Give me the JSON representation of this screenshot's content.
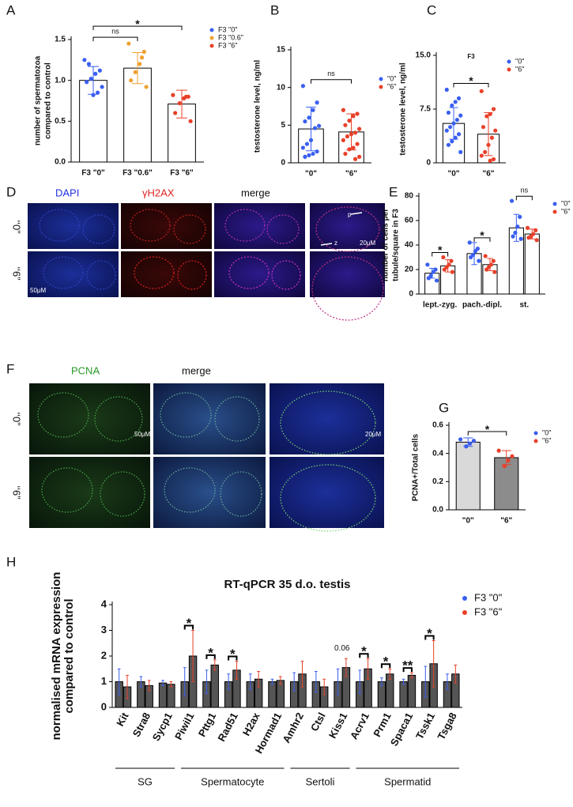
{
  "chart_data": [
    {
      "type": "bar",
      "panel": "A",
      "y_label": [
        "number of spermatozoa",
        "compared to control"
      ],
      "categories": [
        "F3 \"0\"",
        "F3 \"0.6\"",
        "F3 \"6\""
      ],
      "values": [
        1.0,
        1.15,
        0.71
      ],
      "errors": [
        0.17,
        0.19,
        0.17
      ],
      "points": [
        [
          1.25,
          1.12,
          1.08,
          1.02,
          0.98,
          0.92,
          0.85,
          0.82,
          1.2
        ],
        [
          1.45,
          1.35,
          1.2,
          1.1,
          1.0,
          0.92,
          1.28
        ],
        [
          0.82,
          0.8,
          0.78,
          0.72,
          0.6,
          0.5,
          0.8
        ]
      ],
      "colors": [
        "#3a5ff0",
        "#f0a030",
        "#e8402a"
      ],
      "bar_fill": "#ffffff",
      "ylim": [
        0,
        1.5
      ],
      "yticks": [
        {
          "value": 0,
          "label": "0.0"
        },
        {
          "value": 0.5,
          "label": "0.5"
        },
        {
          "value": 1,
          "label": "1.0"
        },
        {
          "value": 1.5,
          "label": "1.5"
        }
      ],
      "brackets": [
        {
          "from": 0,
          "to": 1,
          "label": "ns"
        },
        {
          "from": 0,
          "to": 2,
          "label": "*"
        }
      ]
    },
    {
      "type": "bar",
      "panel": "B",
      "y_label": [
        "testosterone level, ng/ml"
      ],
      "categories": [
        "\"0\"",
        "\"6\""
      ],
      "values": [
        4.5,
        4.1
      ],
      "errors": [
        2.9,
        2.4
      ],
      "points": [
        [
          10.2,
          8,
          7,
          6,
          5.5,
          4.9,
          4.6,
          3,
          2.5,
          2,
          1.5,
          1.2,
          1,
          0.8
        ],
        [
          7,
          6.5,
          6.2,
          5.6,
          5,
          4.5,
          4,
          3.8,
          3.5,
          3,
          2.5,
          2,
          1.8,
          1.2,
          0.8,
          0.5
        ]
      ],
      "colors": [
        "#3a5ff0",
        "#e8402a"
      ],
      "bar_fill": "#ffffff",
      "ylim": [
        0,
        15
      ],
      "yticks": [
        0,
        5,
        10,
        15
      ],
      "brackets": [
        {
          "from": 0,
          "to": 1,
          "label": "ns"
        }
      ]
    },
    {
      "type": "bar",
      "panel": "C",
      "title": "F3",
      "y_label": [
        "testosterone level, ng/ml"
      ],
      "categories": [
        "\"0\"",
        "\"6\""
      ],
      "values": [
        5.5,
        4.0
      ],
      "errors": [
        2.2,
        3.0
      ],
      "points": [
        [
          10.2,
          9,
          8.5,
          8,
          7,
          6.6,
          6,
          5.5,
          5,
          4.5,
          4,
          3.5,
          3,
          2.5,
          1.5
        ],
        [
          10,
          7.5,
          6.8,
          6.5,
          5,
          4.5,
          3.5,
          2.5,
          1.5,
          1,
          0.5,
          0.3
        ]
      ],
      "colors": [
        "#3a5ff0",
        "#e8402a"
      ],
      "bar_fill": "#ffffff",
      "ylim": [
        0,
        15
      ],
      "yticks": [
        0,
        7.5,
        {
          "value": 15,
          "label": "15.0"
        }
      ],
      "brackets": [
        {
          "from": 0,
          "to": 1,
          "label": "*"
        }
      ]
    },
    {
      "type": "grouped_bar",
      "panel": "E",
      "y_label": [
        "number of cells per",
        "tubule/square in F3"
      ],
      "categories": [
        "lept.-zyg.",
        "pach.-dipl.",
        "st."
      ],
      "bar_fill": "#ffffff",
      "series": [
        {
          "name": "\"0\"",
          "color": "#3a5ff0",
          "values": [
            17,
            33,
            54
          ],
          "errors": [
            4,
            9,
            11
          ],
          "points": [
            [
              24,
              20,
              18,
              15,
              13,
              11
            ],
            [
              42,
              37,
              35,
              32,
              30,
              27
            ],
            [
              76,
              63,
              55,
              50,
              47,
              45
            ]
          ]
        },
        {
          "name": "\"6\"",
          "color": "#e8402a",
          "values": [
            23,
            24,
            49
          ],
          "errors": [
            5,
            5,
            4
          ],
          "points": [
            [
              30,
              27,
              24,
              22,
              20,
              18
            ],
            [
              31,
              27,
              24,
              22,
              20,
              18
            ],
            [
              54,
              52,
              49,
              47,
              46,
              44
            ]
          ]
        }
      ],
      "ylim": [
        0,
        80
      ],
      "yticks": [
        0,
        20,
        40,
        60,
        80
      ],
      "brackets": [
        {
          "category": 0,
          "label": "*"
        },
        {
          "category": 1,
          "label": "*"
        },
        {
          "category": 2,
          "label": "ns"
        }
      ]
    },
    {
      "type": "bar",
      "panel": "G",
      "y_label": [
        "PCNA+/Total cells"
      ],
      "categories": [
        "\"0\"",
        "\"6\""
      ],
      "values": [
        0.48,
        0.37
      ],
      "errors": [
        0.03,
        0.05
      ],
      "points": [
        [
          0.5,
          0.49,
          0.47,
          0.45
        ],
        [
          0.42,
          0.38,
          0.35,
          0.31
        ]
      ],
      "colors": [
        "#3a5ff0",
        "#e8402a"
      ],
      "bar_fill": [
        "#d9d9d9",
        "#8c8c8c"
      ],
      "ylim": [
        0,
        0.6
      ],
      "yticks": [
        {
          "value": 0,
          "label": "0.0"
        },
        {
          "value": 0.2,
          "label": "0.2"
        },
        {
          "value": 0.4,
          "label": "0.4"
        },
        {
          "value": 0.6,
          "label": "0.6"
        }
      ],
      "brackets": [
        {
          "from": 0,
          "to": 1,
          "label": "*"
        }
      ]
    },
    {
      "type": "grouped_bar",
      "panel": "H",
      "title": "RT-qPCR 35 d.o. testis",
      "y_label": [
        "normalised mRNA expression",
        "compared to control"
      ],
      "categories": [
        "Kit",
        "Stra8",
        "Sycp1",
        "Piwil1",
        "Pttg1",
        "Rad51",
        "H2ax",
        "Hormad1",
        "Amhr2",
        "Ctsl",
        "Kiss1",
        "Acrv1",
        "Prm1",
        "Spaca1",
        "Tssk1",
        "Tsga8"
      ],
      "bar_fill": "#555555",
      "series": [
        {
          "name": "F3 \"0\"",
          "color": "#3a5ff0",
          "values": [
            1.0,
            1.0,
            0.95,
            1.0,
            1.0,
            1.0,
            1.0,
            1.0,
            1.0,
            1.0,
            1.0,
            1.0,
            1.0,
            1.0,
            1.0,
            1.0
          ],
          "errors": [
            0.5,
            0.2,
            0.1,
            0.55,
            0.45,
            0.3,
            0.3,
            0.1,
            0.35,
            0.4,
            0.5,
            0.45,
            0.15,
            0.1,
            0.6,
            0.3
          ]
        },
        {
          "name": "F3 \"6\"",
          "color": "#e8402a",
          "values": [
            0.8,
            0.85,
            0.9,
            2.0,
            1.65,
            1.45,
            1.1,
            1.05,
            1.3,
            0.8,
            1.55,
            1.5,
            1.3,
            1.25,
            1.7,
            1.3
          ],
          "errors": [
            0.45,
            0.2,
            0.1,
            1.0,
            0.2,
            0.35,
            0.3,
            0.15,
            0.5,
            0.3,
            0.35,
            0.4,
            0.2,
            0.1,
            0.9,
            0.35
          ]
        }
      ],
      "ylim": [
        0,
        4
      ],
      "yticks": [
        0,
        1,
        2,
        3,
        4
      ],
      "brackets": [
        {
          "category": 3,
          "label": "*"
        },
        {
          "category": 4,
          "label": "*"
        },
        {
          "category": 5,
          "label": "*"
        },
        {
          "category": 10,
          "label": "0.06",
          "line": false
        },
        {
          "category": 11,
          "label": "*"
        },
        {
          "category": 12,
          "label": "*"
        },
        {
          "category": 13,
          "label": "**"
        },
        {
          "category": 14,
          "label": "*"
        }
      ],
      "groups": [
        {
          "label": "SG",
          "from": 0,
          "to": 2
        },
        {
          "label": "Spermatocyte",
          "from": 3,
          "to": 7
        },
        {
          "label": "Sertoli",
          "from": 8,
          "to": 10
        },
        {
          "label": "Spermatid",
          "from": 11,
          "to": 15
        }
      ]
    }
  ],
  "images": {
    "D": {
      "panel": "D",
      "columns": [
        "DAPI",
        "γH2AX",
        "merge"
      ],
      "rows": [
        "‘‘0”",
        "‘‘6”"
      ],
      "scale_left": "50μM",
      "scale_right": "20μM",
      "marks": [
        "p",
        "z"
      ]
    },
    "F": {
      "panel": "F",
      "columns": [
        "PCNA",
        "merge"
      ],
      "rows": [
        "‘‘0”",
        "‘‘6”"
      ],
      "scale_left": "50μM",
      "scale_right": "20μM"
    }
  }
}
